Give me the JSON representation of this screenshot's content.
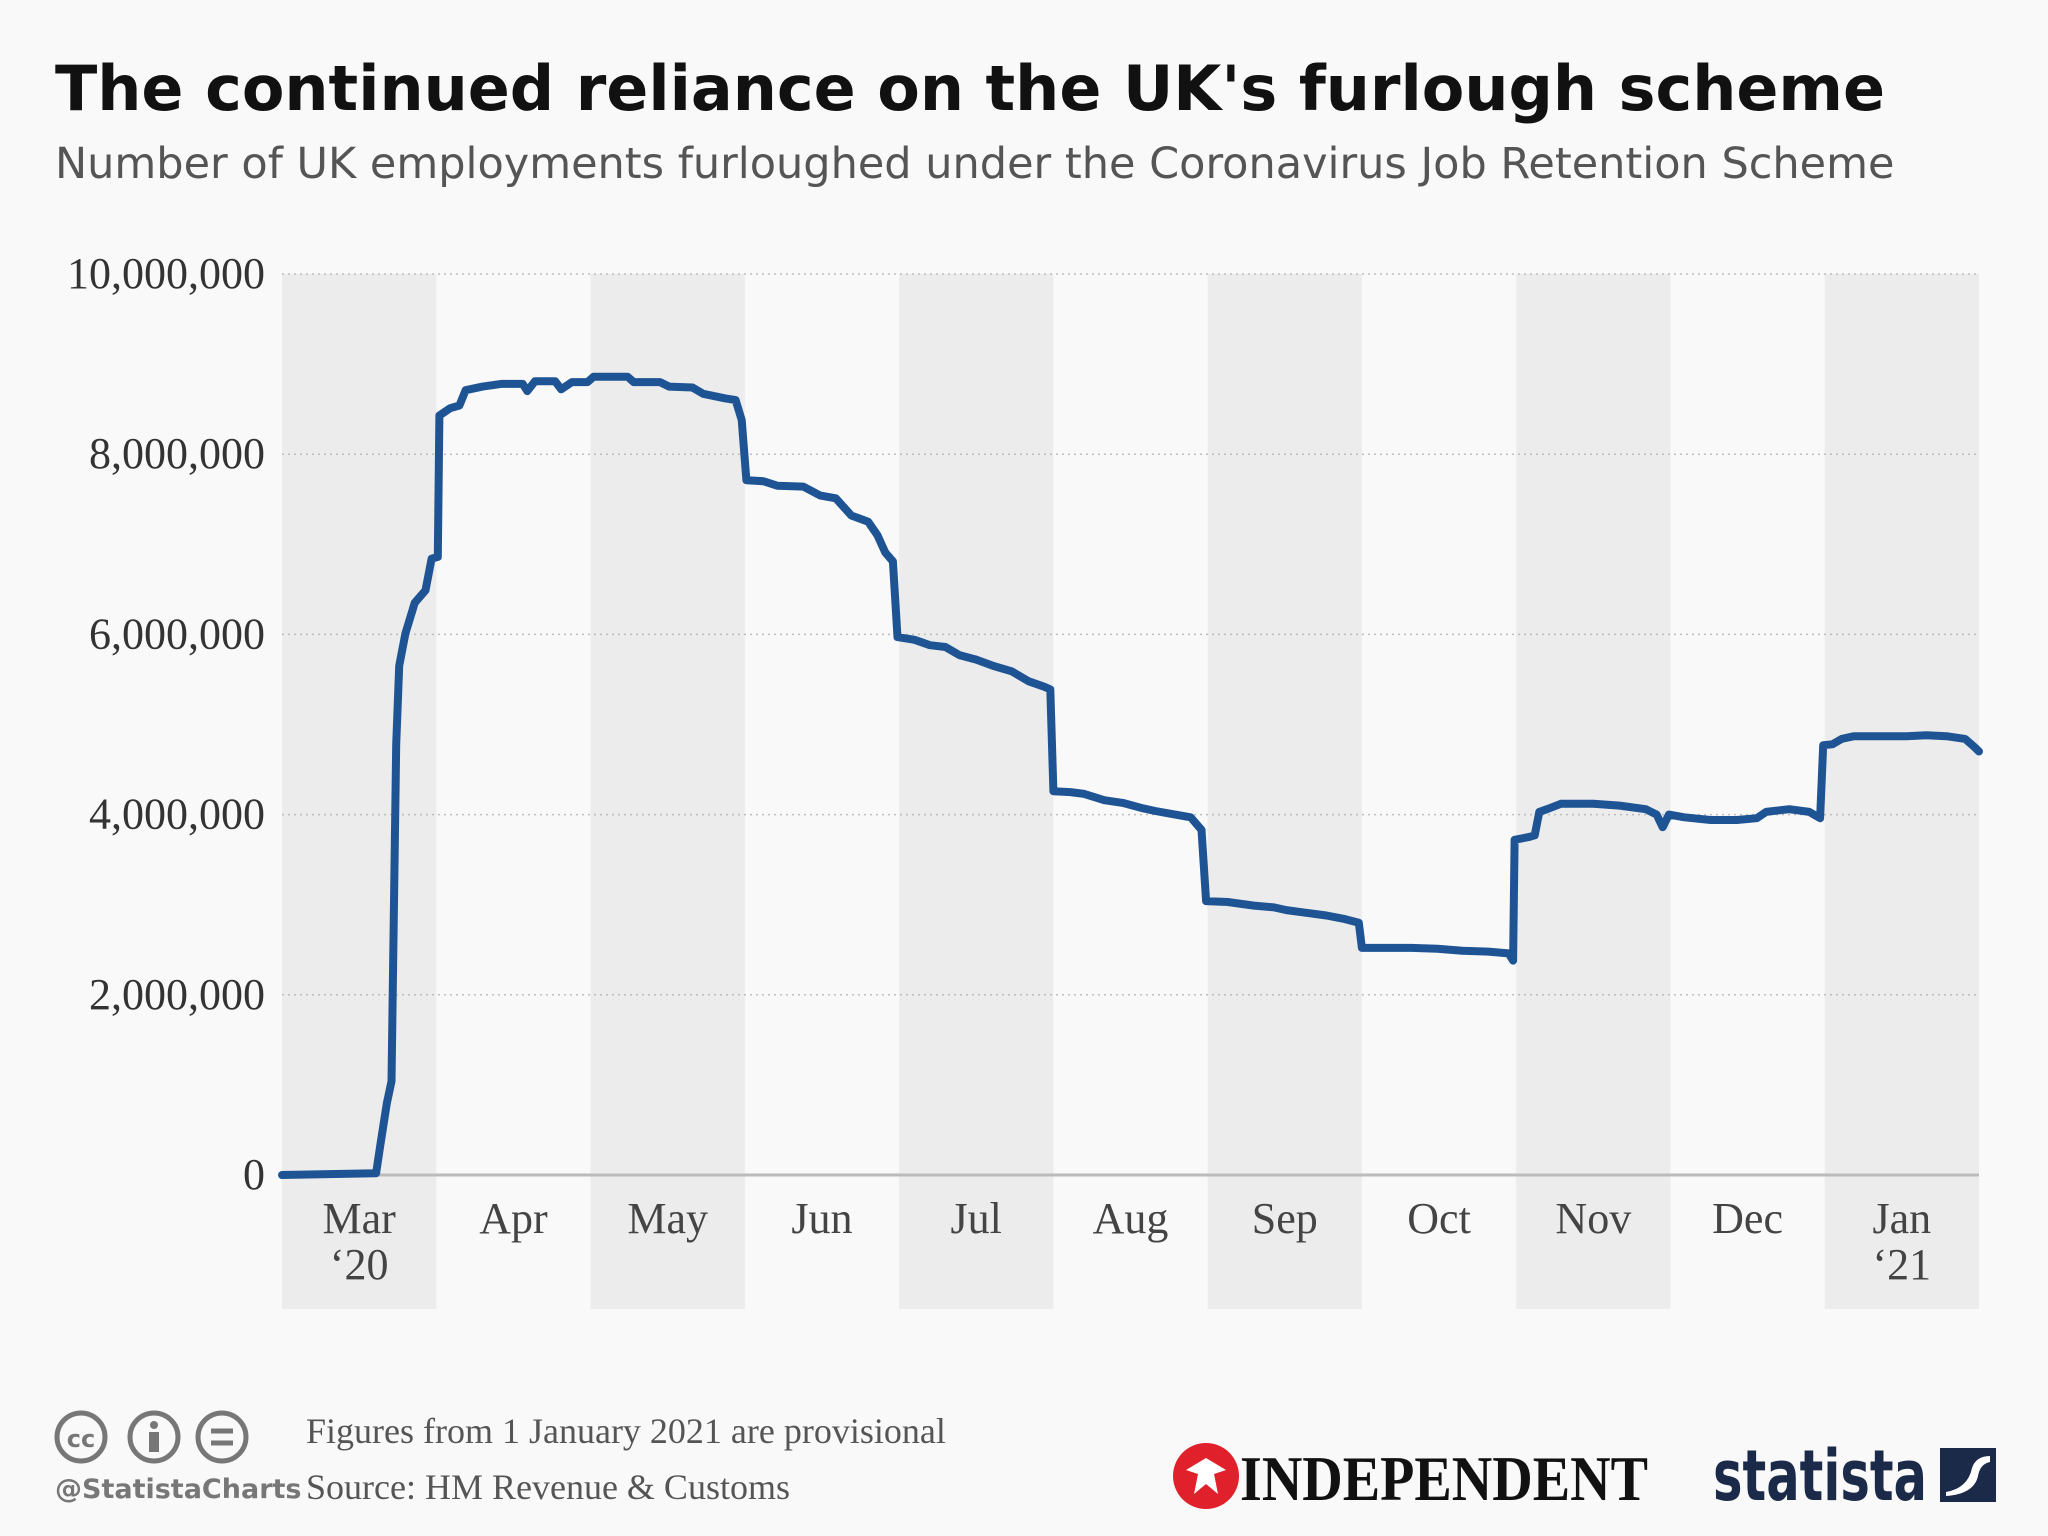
{
  "chart_data": {
    "type": "line",
    "title": "The continued reliance on the UK's furlough scheme",
    "subtitle": "Number of UK employments furloughed under the Coronavirus Job Retention Scheme",
    "categories": [
      "Mar ‘20",
      "Apr",
      "May",
      "Jun",
      "Jul",
      "Aug",
      "Sep",
      "Oct",
      "Nov",
      "Dec",
      "Jan ‘21"
    ],
    "x": [
      0,
      0.61,
      0.64,
      0.68,
      0.71,
      0.74,
      0.76,
      0.8,
      0.86,
      0.93,
      0.97,
      1.01,
      1.02,
      1.09,
      1.15,
      1.19,
      1.3,
      1.42,
      1.56,
      1.59,
      1.64,
      1.77,
      1.81,
      1.88,
      1.98,
      2.02,
      2.08,
      2.24,
      2.28,
      2.45,
      2.51,
      2.66,
      2.73,
      2.87,
      2.94,
      2.98,
      3.01,
      3.12,
      3.21,
      3.38,
      3.49,
      3.59,
      3.69,
      3.8,
      3.86,
      3.91,
      3.96,
      3.99,
      4.1,
      4.2,
      4.3,
      4.39,
      4.5,
      4.61,
      4.73,
      4.84,
      4.94,
      4.98,
      5.0,
      5.11,
      5.2,
      5.33,
      5.45,
      5.58,
      5.66,
      5.79,
      5.89,
      5.96,
      5.99,
      6.13,
      6.3,
      6.43,
      6.51,
      6.64,
      6.77,
      6.89,
      6.98,
      7.0,
      7.15,
      7.32,
      7.49,
      7.65,
      7.82,
      7.95,
      7.98,
      7.99,
      8.08,
      8.12,
      8.15,
      8.2,
      8.29,
      8.5,
      8.67,
      8.84,
      8.91,
      8.95,
      8.99,
      9.09,
      9.26,
      9.43,
      9.56,
      9.62,
      9.77,
      9.9,
      9.97,
      9.99,
      10.05,
      10.11,
      10.19,
      10.36,
      10.53,
      10.66,
      10.79,
      10.91,
      10.97,
      11.0
    ],
    "values": [
      0,
      20000,
      360000,
      800000,
      1040000,
      4780000,
      5650000,
      6010000,
      6350000,
      6490000,
      6840000,
      6860000,
      8430000,
      8510000,
      8540000,
      8710000,
      8750000,
      8780000,
      8780000,
      8700000,
      8810000,
      8810000,
      8720000,
      8800000,
      8800000,
      8860000,
      8860000,
      8860000,
      8800000,
      8800000,
      8750000,
      8740000,
      8670000,
      8620000,
      8600000,
      8380000,
      7710000,
      7700000,
      7650000,
      7640000,
      7540000,
      7510000,
      7320000,
      7250000,
      7100000,
      6910000,
      6810000,
      5970000,
      5940000,
      5880000,
      5860000,
      5770000,
      5720000,
      5650000,
      5590000,
      5480000,
      5420000,
      5390000,
      4260000,
      4250000,
      4230000,
      4160000,
      4130000,
      4070000,
      4040000,
      4000000,
      3970000,
      3830000,
      3040000,
      3030000,
      2990000,
      2970000,
      2940000,
      2910000,
      2880000,
      2840000,
      2800000,
      2520000,
      2520000,
      2520000,
      2510000,
      2490000,
      2480000,
      2460000,
      2380000,
      3720000,
      3750000,
      3770000,
      4030000,
      4060000,
      4120000,
      4120000,
      4100000,
      4060000,
      4000000,
      3860000,
      4000000,
      3970000,
      3940000,
      3940000,
      3960000,
      4030000,
      4060000,
      4030000,
      3960000,
      4770000,
      4780000,
      4840000,
      4870000,
      4870000,
      4870000,
      4880000,
      4870000,
      4840000,
      4750000,
      4700000
    ],
    "color": "#1f5494",
    "xlim": [
      0,
      11
    ],
    "ylim": [
      0,
      10000000
    ],
    "yticks": [
      0,
      {
        "value": 2000000,
        "label": "2,000,000"
      },
      {
        "value": 4000000,
        "label": "4,000,000"
      },
      {
        "value": 6000000,
        "label": "6,000,000"
      },
      {
        "value": 8000000,
        "label": "8,000,000"
      },
      {
        "value": 10000000,
        "label": "10,000,000"
      }
    ],
    "grid": true
  },
  "footer": {
    "note": "Figures from 1 January 2021 are provisional",
    "source": "Source: HM Revenue & Customs",
    "handle": "@StatistaCharts",
    "partner": "INDEPENDENT",
    "brand": "statista"
  }
}
